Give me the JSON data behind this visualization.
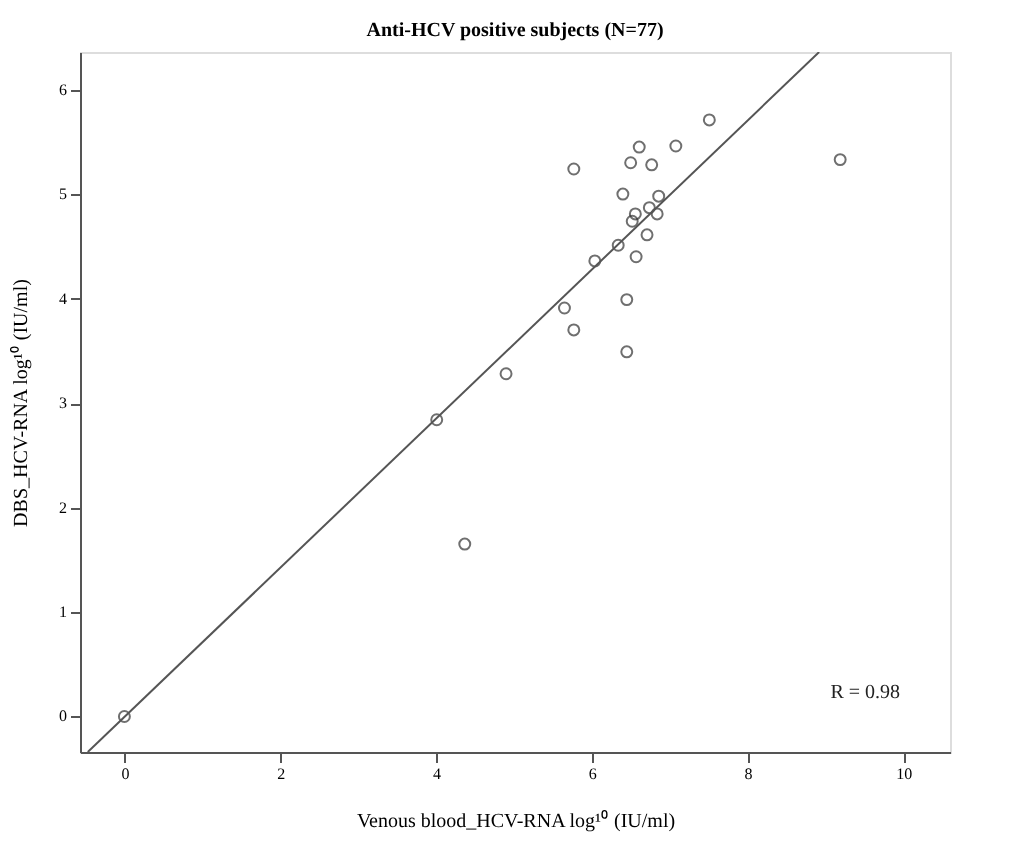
{
  "chart_data": {
    "type": "scatter",
    "title": "Anti-HCV positive subjects (N=77)",
    "xlabel": "Venous blood_HCV-RNA log¹⁰ (IU/ml)",
    "ylabel": "DBS_HCV-RNA log¹⁰ (IU/ml)",
    "xlim": [
      -0.57,
      10.6
    ],
    "ylim": [
      -0.34,
      6.36
    ],
    "xticks": [
      0,
      2,
      4,
      6,
      8,
      10
    ],
    "yticks": [
      0,
      1,
      2,
      3,
      4,
      5,
      6
    ],
    "grid": false,
    "series": [
      {
        "marker": "circle",
        "color": "#333333",
        "x": [
          0,
          4.01,
          4.9,
          4.37,
          5.65,
          5.77,
          6.45,
          6.45,
          5.77,
          6.61,
          7.08,
          6.5,
          6.77,
          6.4,
          6.86,
          6.84,
          6.74,
          6.56,
          6.52,
          6.71,
          6.34,
          6.57,
          6.04,
          7.51,
          9.19
        ],
        "values": [
          0,
          2.84,
          3.28,
          1.65,
          3.91,
          3.7,
          3.99,
          3.49,
          5.24,
          5.45,
          5.46,
          5.3,
          5.28,
          5.0,
          4.98,
          4.81,
          4.87,
          4.81,
          4.74,
          4.61,
          4.51,
          4.4,
          4.36,
          5.71,
          5.33
        ]
      },
      {
        "type": "line",
        "color": "#555555",
        "line_style": "solid",
        "marker": "none",
        "x": [
          -0.47,
          8.92
        ],
        "values": [
          -0.34,
          6.36
        ]
      }
    ],
    "annotations": [
      "R = 0.98"
    ]
  }
}
